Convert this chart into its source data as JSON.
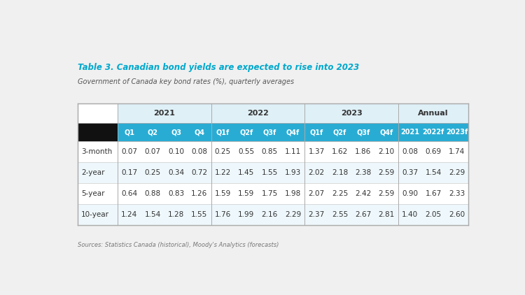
{
  "title": "Table 3. Canadian bond yields are expected to rise into 2023",
  "subtitle": "Government of Canada key bond rates (%), quarterly averages",
  "source": "Sources: Statistics Canada (historical), Moody's Analytics (forecasts)",
  "group_labels": [
    "2021",
    "2022",
    "2023",
    "Annual"
  ],
  "subheaders": [
    "Q1",
    "Q2",
    "Q3",
    "Q4",
    "Q1f",
    "Q2f",
    "Q3f",
    "Q4f",
    "Q1f",
    "Q2f",
    "Q3f",
    "Q4f",
    "2021",
    "2022f",
    "2023f"
  ],
  "row_labels": [
    "3-month",
    "2-year",
    "5-year",
    "10-year"
  ],
  "data": [
    [
      0.07,
      0.07,
      0.1,
      0.08,
      0.25,
      0.55,
      0.85,
      1.11,
      1.37,
      1.62,
      1.86,
      2.1,
      0.08,
      0.69,
      1.74
    ],
    [
      0.17,
      0.25,
      0.34,
      0.72,
      1.22,
      1.45,
      1.55,
      1.93,
      2.02,
      2.18,
      2.38,
      2.59,
      0.37,
      1.54,
      2.29
    ],
    [
      0.64,
      0.88,
      0.83,
      1.26,
      1.59,
      1.59,
      1.75,
      1.98,
      2.07,
      2.25,
      2.42,
      2.59,
      0.9,
      1.67,
      2.33
    ],
    [
      1.24,
      1.54,
      1.28,
      1.55,
      1.76,
      1.99,
      2.16,
      2.29,
      2.37,
      2.55,
      2.67,
      2.81,
      1.4,
      2.05,
      2.6
    ]
  ],
  "bg_color": "#f0f0f0",
  "table_bg": "#ffffff",
  "header_group_bg": "#dff0f7",
  "subheader_bg": "#29acd4",
  "black_cell_bg": "#111111",
  "title_color": "#00a8cc",
  "subtitle_color": "#555555",
  "text_color": "#333333",
  "source_color": "#777777",
  "row_bg_even": "#ffffff",
  "row_bg_odd": "#eef7fb"
}
